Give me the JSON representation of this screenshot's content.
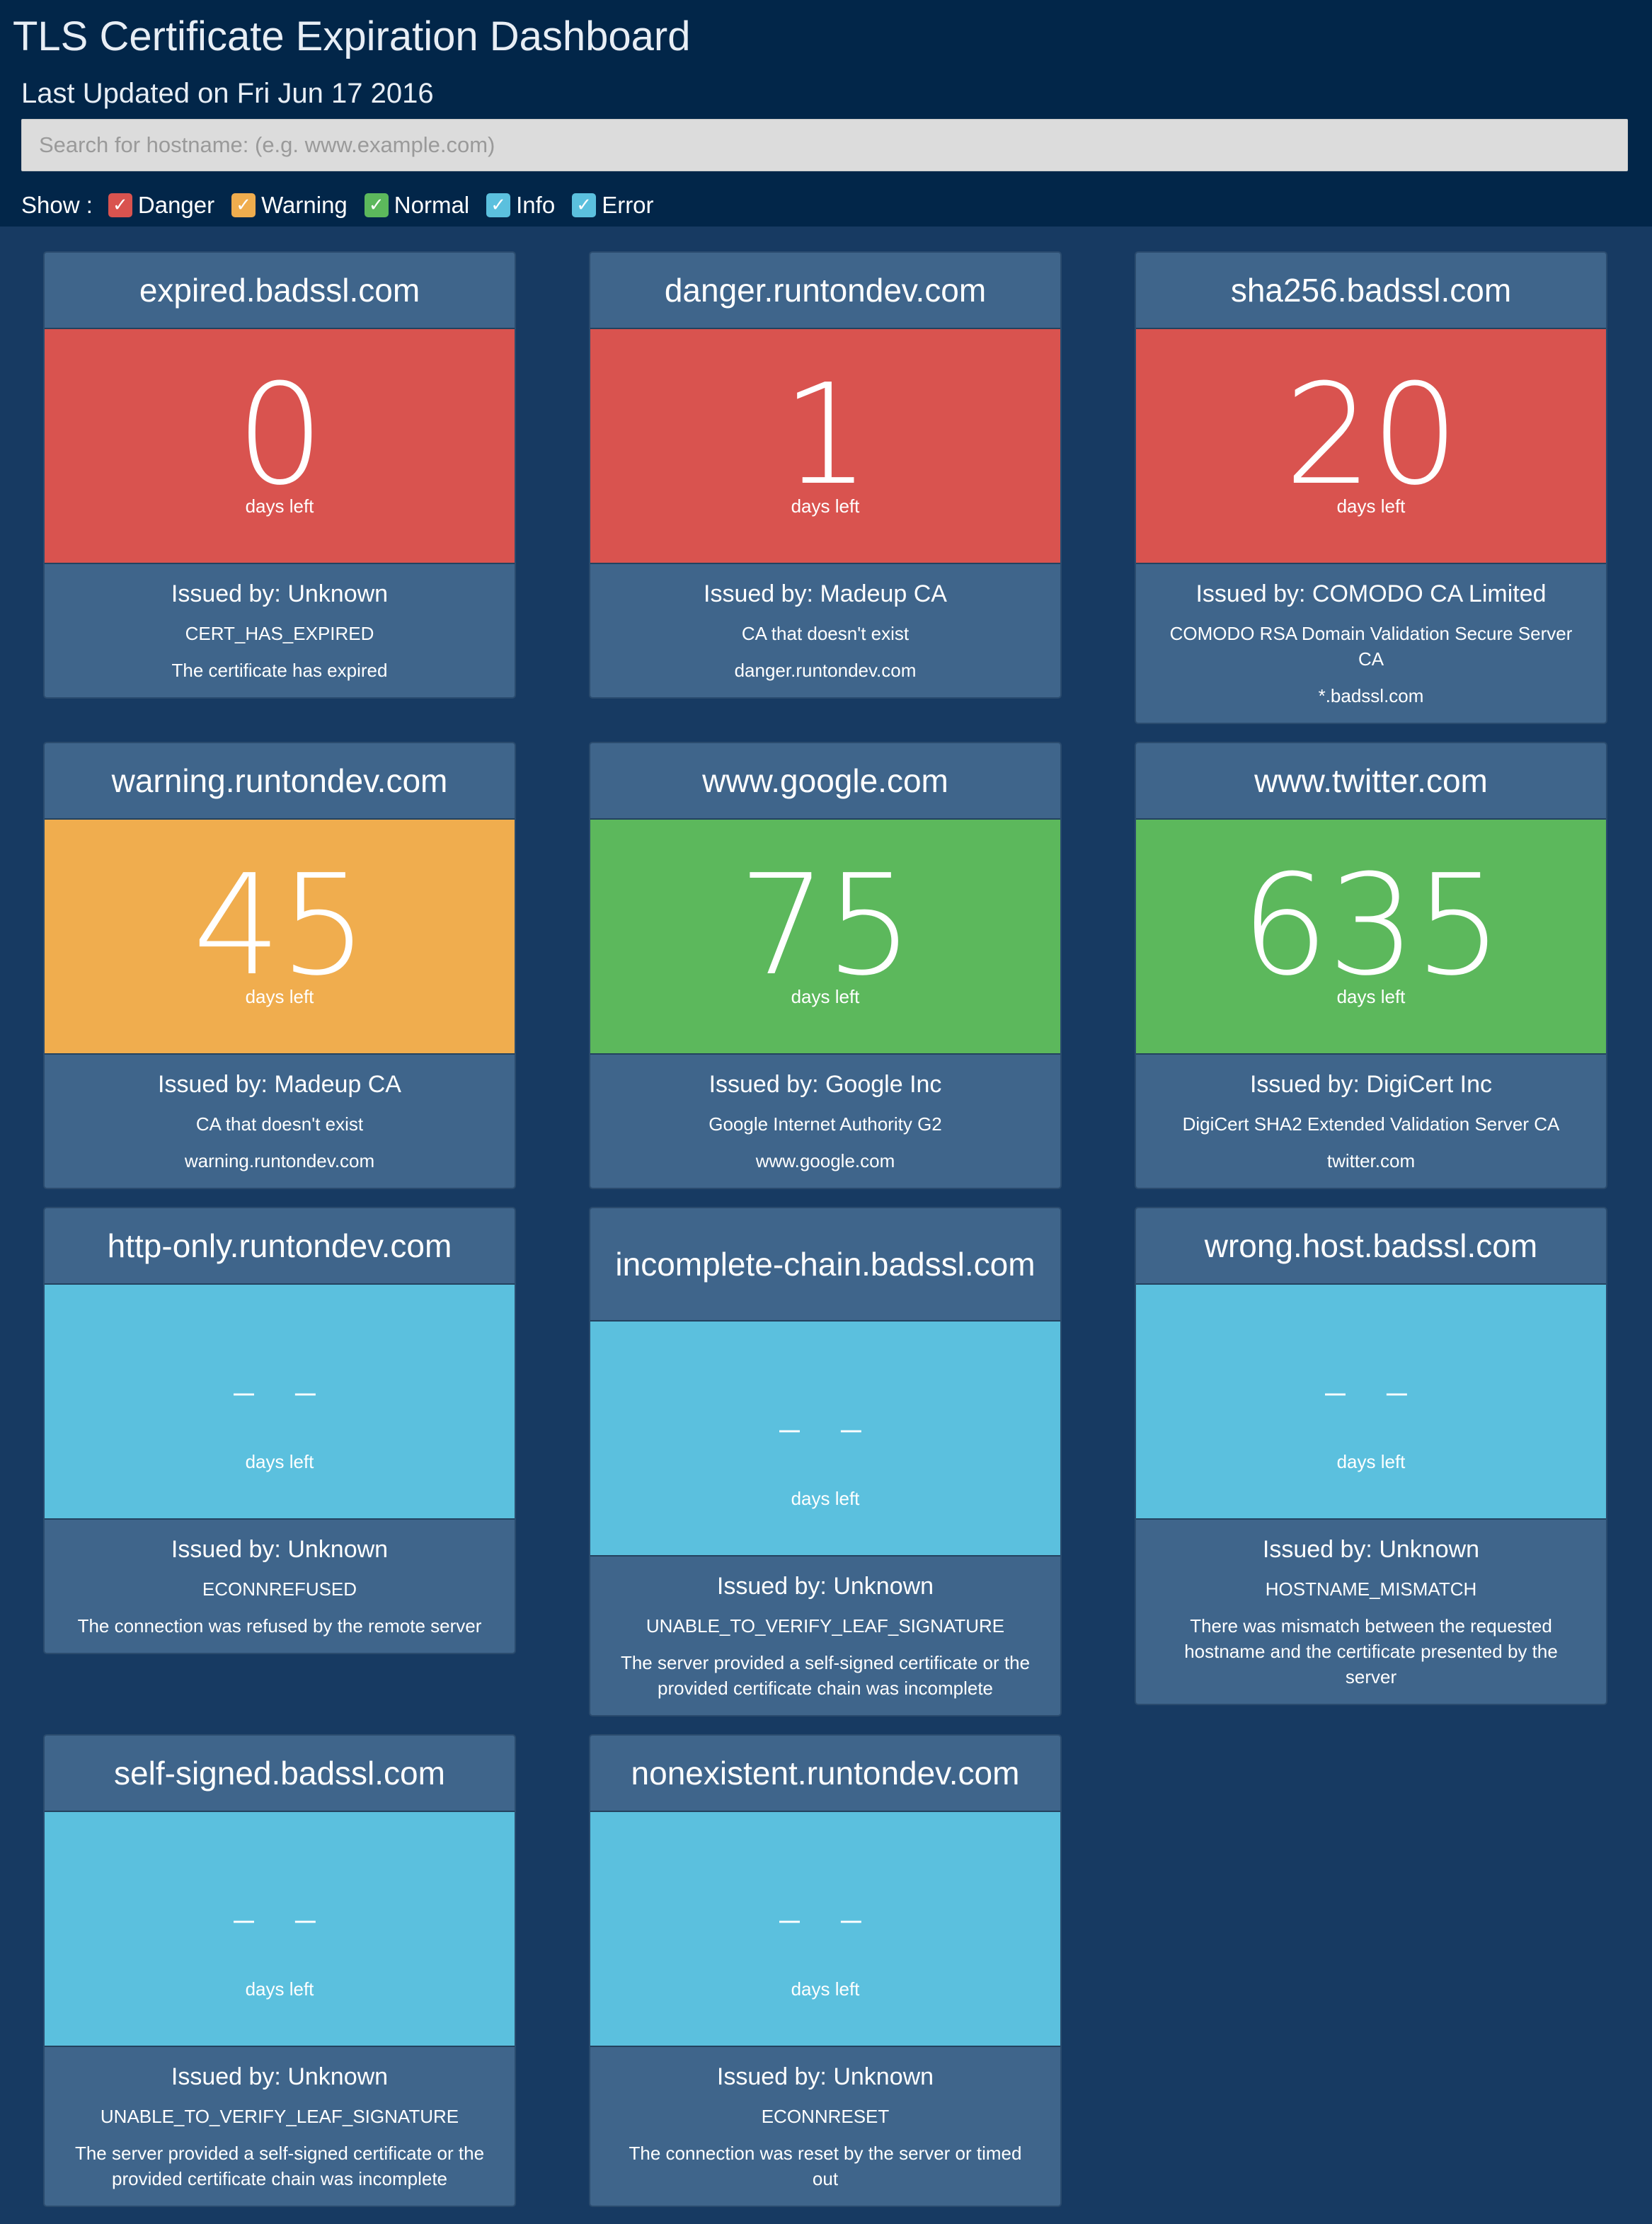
{
  "header": {
    "title": "TLS Certificate Expiration Dashboard",
    "last_updated": "Last Updated on Fri Jun 17 2016",
    "search_placeholder": "Search for hostname: (e.g. www.example.com)"
  },
  "filters": {
    "label": "Show :",
    "items": [
      {
        "label": "Danger",
        "checked": true,
        "color": "#d9534f"
      },
      {
        "label": "Warning",
        "checked": true,
        "color": "#f0ad4e"
      },
      {
        "label": "Normal",
        "checked": true,
        "color": "#5cb85c"
      },
      {
        "label": "Info",
        "checked": true,
        "color": "#5bc0de"
      },
      {
        "label": "Error",
        "checked": true,
        "color": "#5bc0de"
      }
    ]
  },
  "days_label": "days left",
  "colors": {
    "header_bg": "#022649",
    "page_bg": "#173a62",
    "card_bg": "#3f658b",
    "danger": "#d9534f",
    "warning": "#f0ad4e",
    "normal": "#5cb85c",
    "info": "#5bc0de"
  },
  "cards": [
    {
      "hostname": "expired.badssl.com",
      "days": "0",
      "status": "danger",
      "issuer": "Issued by: Unknown",
      "detail1": "CERT_HAS_EXPIRED",
      "detail2": "The certificate has expired"
    },
    {
      "hostname": "danger.runtondev.com",
      "days": "1",
      "status": "danger",
      "issuer": "Issued by: Madeup CA",
      "detail1": "CA that doesn't exist",
      "detail2": "danger.runtondev.com"
    },
    {
      "hostname": "sha256.badssl.com",
      "days": "20",
      "status": "danger",
      "issuer": "Issued by: COMODO CA Limited",
      "detail1": "COMODO RSA Domain Validation Secure Server CA",
      "detail2": "*.badssl.com"
    },
    {
      "hostname": "warning.runtondev.com",
      "days": "45",
      "status": "warning",
      "issuer": "Issued by: Madeup CA",
      "detail1": "CA that doesn't exist",
      "detail2": "warning.runtondev.com"
    },
    {
      "hostname": "www.google.com",
      "days": "75",
      "status": "normal",
      "issuer": "Issued by: Google Inc",
      "detail1": "Google Internet Authority G2",
      "detail2": "www.google.com"
    },
    {
      "hostname": "www.twitter.com",
      "days": "635",
      "status": "normal",
      "issuer": "Issued by: DigiCert Inc",
      "detail1": "DigiCert SHA2 Extended Validation Server CA",
      "detail2": "twitter.com"
    },
    {
      "hostname": "http-only.runtondev.com",
      "days": "– –",
      "status": "info",
      "issuer": "Issued by: Unknown",
      "detail1": "ECONNREFUSED",
      "detail2": "The connection was refused by the remote server"
    },
    {
      "hostname": "incomplete-chain.badssl.com",
      "days": "– –",
      "status": "info",
      "issuer": "Issued by: Unknown",
      "detail1": "UNABLE_TO_VERIFY_LEAF_SIGNATURE",
      "detail2": "The server provided a self-signed certificate or the provided certificate chain was incomplete"
    },
    {
      "hostname": "wrong.host.badssl.com",
      "days": "– –",
      "status": "info",
      "issuer": "Issued by: Unknown",
      "detail1": "HOSTNAME_MISMATCH",
      "detail2": "There was mismatch between the requested hostname and the certificate presented by the server"
    },
    {
      "hostname": "self-signed.badssl.com",
      "days": "– –",
      "status": "info",
      "issuer": "Issued by: Unknown",
      "detail1": "UNABLE_TO_VERIFY_LEAF_SIGNATURE",
      "detail2": "The server provided a self-signed certificate or the provided certificate chain was incomplete"
    },
    {
      "hostname": "nonexistent.runtondev.com",
      "days": "– –",
      "status": "info",
      "issuer": "Issued by: Unknown",
      "detail1": "ECONNRESET",
      "detail2": "The connection was reset by the server or timed out"
    }
  ]
}
